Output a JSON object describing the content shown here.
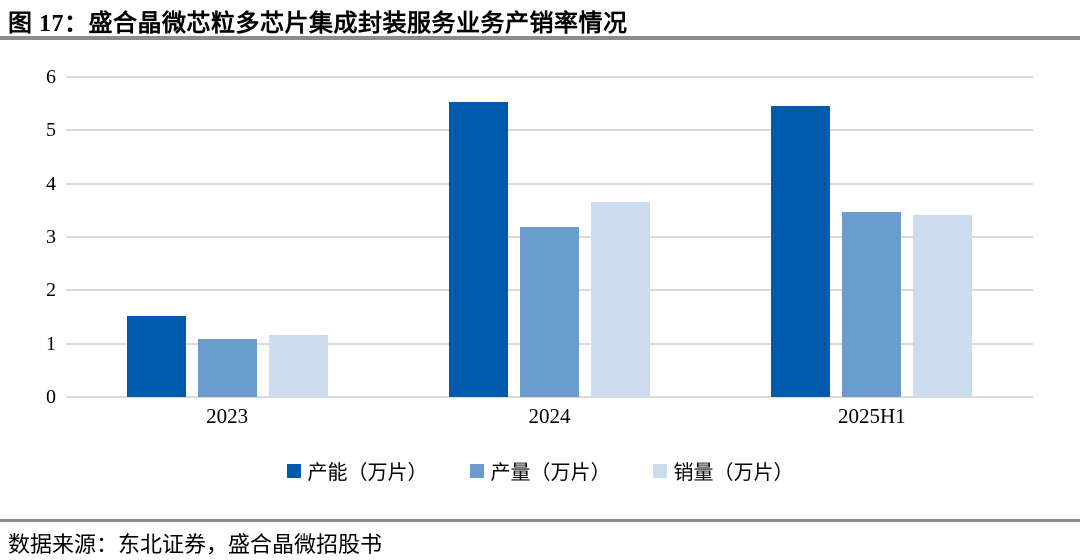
{
  "header": {
    "title": "图 17：盛合晶微芯粒多芯片集成封装服务业务产销率情况"
  },
  "footer": {
    "source": "数据来源：东北证券，盛合晶微招股书"
  },
  "chart_data": {
    "type": "bar",
    "title": "盛合晶微芯粒多芯片集成封装服务业务产销率情况",
    "categories": [
      "2023",
      "2024",
      "2025H1"
    ],
    "series": [
      {
        "name": "产能（万片）",
        "values": [
          1.52,
          5.53,
          5.46
        ],
        "color": "#005BAC"
      },
      {
        "name": "产量（万片）",
        "values": [
          1.09,
          3.19,
          3.47
        ],
        "color": "#6B9CCE"
      },
      {
        "name": "销量（万片）",
        "values": [
          1.16,
          3.66,
          3.42
        ],
        "color": "#CCDCEE"
      }
    ],
    "xlabel": "",
    "ylabel": "",
    "ylim": [
      0,
      6
    ],
    "yticks": [
      0,
      1,
      2,
      3,
      4,
      5,
      6
    ],
    "grid": true,
    "gridline_color": "#DADADA",
    "legend_position": "bottom"
  }
}
